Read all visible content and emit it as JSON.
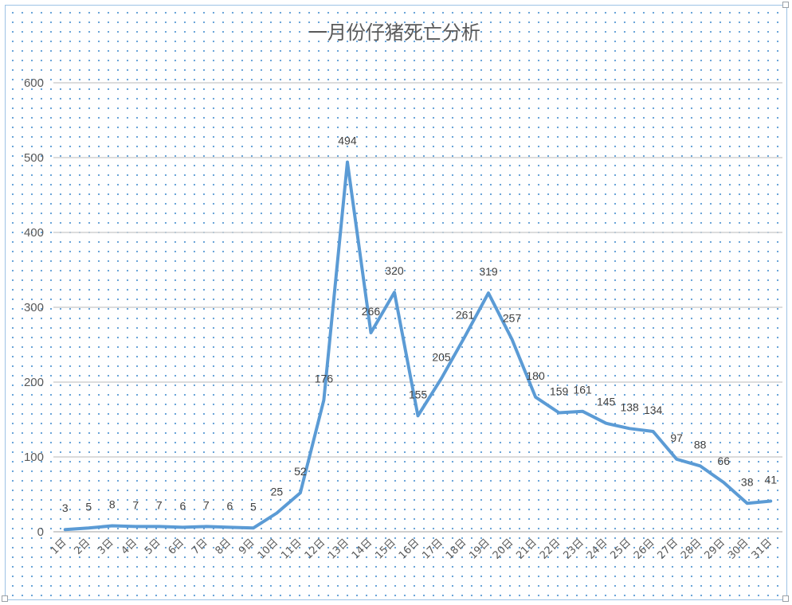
{
  "chart_data": {
    "type": "line",
    "title": "一月份仔猪死亡分析",
    "xlabel": "",
    "ylabel": "",
    "ylim": [
      0,
      600
    ],
    "yticks": [
      0,
      100,
      200,
      300,
      400,
      500,
      600
    ],
    "grid": true,
    "legend": "none",
    "categories": [
      "1日",
      "2日",
      "3日",
      "4日",
      "5日",
      "6日",
      "7日",
      "8日",
      "9日",
      "10日",
      "11日",
      "12日",
      "13日",
      "14日",
      "15日",
      "16日",
      "17日",
      "18日",
      "19日",
      "20日",
      "21日",
      "22日",
      "23日",
      "24日",
      "25日",
      "26日",
      "27日",
      "28日",
      "29日",
      "30日",
      "31日"
    ],
    "series": [
      {
        "values": [
          3,
          5,
          8,
          7,
          7,
          6,
          7,
          6,
          5,
          25,
          52,
          176,
          494,
          266,
          320,
          155,
          205,
          261,
          319,
          257,
          180,
          159,
          161,
          145,
          138,
          134,
          97,
          88,
          66,
          38,
          41
        ]
      }
    ]
  },
  "colors": {
    "line": "#5b9bd5",
    "grid": "#d0d0d0",
    "text": "#595959",
    "dots": "#5b9bd5"
  }
}
